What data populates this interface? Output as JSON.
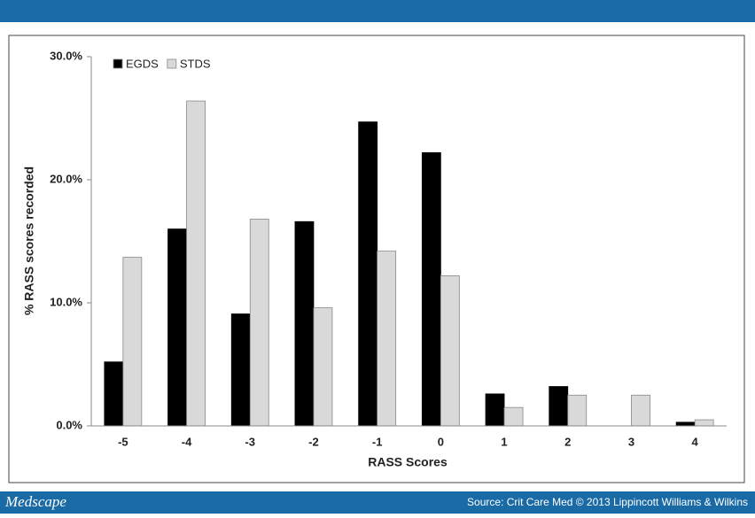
{
  "chart_data": {
    "type": "bar",
    "x_label": "RASS Scores",
    "y_label": "% RASS scores recorded",
    "categories": [
      "-5",
      "-4",
      "-3",
      "-2",
      "-1",
      "0",
      "1",
      "2",
      "3",
      "4"
    ],
    "series": [
      {
        "name": "EGDS",
        "color": "#000000",
        "values": [
          5.2,
          16.0,
          9.1,
          16.6,
          24.7,
          22.2,
          2.6,
          3.2,
          0,
          0.3
        ]
      },
      {
        "name": "STDS",
        "color": "#d9d9d9",
        "values": [
          13.7,
          26.4,
          16.8,
          9.6,
          14.2,
          12.2,
          1.5,
          2.5,
          2.5,
          0.5
        ]
      }
    ],
    "ylim": [
      0,
      30
    ],
    "yticks": [
      {
        "value": 0,
        "label": "0.0%"
      },
      {
        "value": 10,
        "label": "10.0%"
      },
      {
        "value": 20,
        "label": "20.0%"
      },
      {
        "value": 30,
        "label": "30.0%"
      }
    ],
    "grid": false,
    "legend": "top-left"
  },
  "footer": {
    "brand": "Medscape",
    "source": "Source: Crit Care Med © 2013 Lippincott Williams & Wilkins"
  }
}
